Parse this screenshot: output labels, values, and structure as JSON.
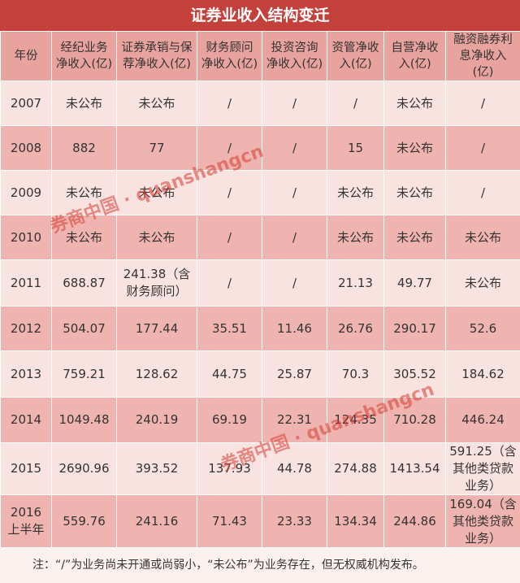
{
  "title": "证券业收入结构变迁",
  "table": {
    "header": [
      "年份",
      "经纪业务净收入(亿)",
      "证券承销与保荐净收入(亿)",
      "财务顾问净收入(亿)",
      "投资咨询净收入(亿)",
      "资管净收入(亿)",
      "自营净收入(亿)",
      "融资融券利息净收入(亿)"
    ],
    "rows": [
      [
        "2007",
        "未公布",
        "未公布",
        "/",
        "/",
        "/",
        "未公布",
        "/"
      ],
      [
        "2008",
        "882",
        "77",
        "/",
        "/",
        "15",
        "未公布",
        "/"
      ],
      [
        "2009",
        "未公布",
        "未公布",
        "/",
        "/",
        "未公布",
        "未公布",
        "/"
      ],
      [
        "2010",
        "未公布",
        "未公布",
        "/",
        "/",
        "未公布",
        "未公布",
        "未公布"
      ],
      [
        "2011",
        "688.87",
        "241.38（含财务顾问）",
        "/",
        "/",
        "21.13",
        "49.77",
        "未公布"
      ],
      [
        "2012",
        "504.07",
        "177.44",
        "35.51",
        "11.46",
        "26.76",
        "290.17",
        "52.6"
      ],
      [
        "2013",
        "759.21",
        "128.62",
        "44.75",
        "25.87",
        "70.3",
        "305.52",
        "184.62"
      ],
      [
        "2014",
        "1049.48",
        "240.19",
        "69.19",
        "22.31",
        "124.35",
        "710.28",
        "446.24"
      ],
      [
        "2015",
        "2690.96",
        "393.52",
        "137.93",
        "44.78",
        "274.88",
        "1413.54",
        "591.25（含其他类贷款业务）"
      ],
      [
        "2016上半年",
        "559.76",
        "241.16",
        "71.43",
        "23.33",
        "134.34",
        "244.86",
        "169.04（含其他类贷款业务）"
      ]
    ]
  },
  "note": "注：“/”为业务尚未开通或尚弱小，“未公布”为业务存在，但无权威机构发布。",
  "watermarks": [
    "券商中国 · quanshangcn",
    "券商中国 · quanshangcn"
  ]
}
